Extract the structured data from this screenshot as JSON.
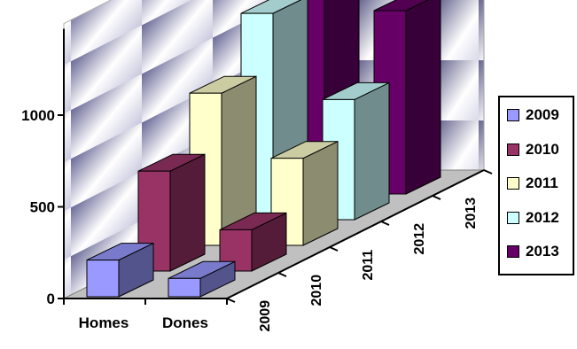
{
  "chart_data": {
    "type": "bar",
    "variant": "3d-column",
    "categories": [
      "Homes",
      "Dones"
    ],
    "series": [
      {
        "name": "2009",
        "values": [
          200,
          100
        ],
        "color": "#9999ff"
      },
      {
        "name": "2010",
        "values": [
          545,
          225
        ],
        "color": "#993366"
      },
      {
        "name": "2011",
        "values": [
          830,
          475
        ],
        "color": "#ffffcc"
      },
      {
        "name": "2012",
        "values": [
          1125,
          655
        ],
        "color": "#ccffff"
      },
      {
        "name": "2013",
        "values": [
          1480,
          1000
        ],
        "color": "#660066"
      }
    ],
    "yticks": [
      0,
      500,
      1000
    ],
    "ylim": [
      0,
      1500
    ],
    "depth_labels": [
      "2009",
      "2010",
      "2011",
      "2012",
      "2013"
    ],
    "legend": {
      "position": "right",
      "items": [
        {
          "label": "2009",
          "color": "#9999ff"
        },
        {
          "label": "2010",
          "color": "#993366"
        },
        {
          "label": "2011",
          "color": "#ffffcc"
        },
        {
          "label": "2012",
          "color": "#ccffff"
        },
        {
          "label": "2013",
          "color": "#660066"
        }
      ]
    },
    "wall_gradient": [
      "#6b6b99",
      "#ffffff"
    ],
    "grid": false
  }
}
